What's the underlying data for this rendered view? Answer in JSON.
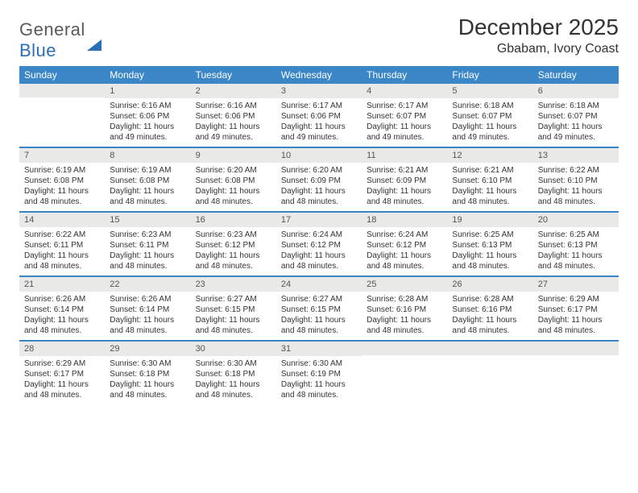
{
  "brand": {
    "part1": "General",
    "part2": "Blue"
  },
  "title": "December 2025",
  "location": "Gbabam, Ivory Coast",
  "colors": {
    "header_bg": "#3b86c6",
    "header_fg": "#ffffff",
    "daynum_bg": "#e9e9e8",
    "text": "#333333",
    "brand_gray": "#5a5a5a",
    "brand_blue": "#2a6fb5"
  },
  "day_labels": [
    "Sunday",
    "Monday",
    "Tuesday",
    "Wednesday",
    "Thursday",
    "Friday",
    "Saturday"
  ],
  "weeks": [
    [
      {
        "n": "",
        "sr": "",
        "ss": "",
        "dl": ""
      },
      {
        "n": "1",
        "sr": "Sunrise: 6:16 AM",
        "ss": "Sunset: 6:06 PM",
        "dl": "Daylight: 11 hours and 49 minutes."
      },
      {
        "n": "2",
        "sr": "Sunrise: 6:16 AM",
        "ss": "Sunset: 6:06 PM",
        "dl": "Daylight: 11 hours and 49 minutes."
      },
      {
        "n": "3",
        "sr": "Sunrise: 6:17 AM",
        "ss": "Sunset: 6:06 PM",
        "dl": "Daylight: 11 hours and 49 minutes."
      },
      {
        "n": "4",
        "sr": "Sunrise: 6:17 AM",
        "ss": "Sunset: 6:07 PM",
        "dl": "Daylight: 11 hours and 49 minutes."
      },
      {
        "n": "5",
        "sr": "Sunrise: 6:18 AM",
        "ss": "Sunset: 6:07 PM",
        "dl": "Daylight: 11 hours and 49 minutes."
      },
      {
        "n": "6",
        "sr": "Sunrise: 6:18 AM",
        "ss": "Sunset: 6:07 PM",
        "dl": "Daylight: 11 hours and 49 minutes."
      }
    ],
    [
      {
        "n": "7",
        "sr": "Sunrise: 6:19 AM",
        "ss": "Sunset: 6:08 PM",
        "dl": "Daylight: 11 hours and 48 minutes."
      },
      {
        "n": "8",
        "sr": "Sunrise: 6:19 AM",
        "ss": "Sunset: 6:08 PM",
        "dl": "Daylight: 11 hours and 48 minutes."
      },
      {
        "n": "9",
        "sr": "Sunrise: 6:20 AM",
        "ss": "Sunset: 6:08 PM",
        "dl": "Daylight: 11 hours and 48 minutes."
      },
      {
        "n": "10",
        "sr": "Sunrise: 6:20 AM",
        "ss": "Sunset: 6:09 PM",
        "dl": "Daylight: 11 hours and 48 minutes."
      },
      {
        "n": "11",
        "sr": "Sunrise: 6:21 AM",
        "ss": "Sunset: 6:09 PM",
        "dl": "Daylight: 11 hours and 48 minutes."
      },
      {
        "n": "12",
        "sr": "Sunrise: 6:21 AM",
        "ss": "Sunset: 6:10 PM",
        "dl": "Daylight: 11 hours and 48 minutes."
      },
      {
        "n": "13",
        "sr": "Sunrise: 6:22 AM",
        "ss": "Sunset: 6:10 PM",
        "dl": "Daylight: 11 hours and 48 minutes."
      }
    ],
    [
      {
        "n": "14",
        "sr": "Sunrise: 6:22 AM",
        "ss": "Sunset: 6:11 PM",
        "dl": "Daylight: 11 hours and 48 minutes."
      },
      {
        "n": "15",
        "sr": "Sunrise: 6:23 AM",
        "ss": "Sunset: 6:11 PM",
        "dl": "Daylight: 11 hours and 48 minutes."
      },
      {
        "n": "16",
        "sr": "Sunrise: 6:23 AM",
        "ss": "Sunset: 6:12 PM",
        "dl": "Daylight: 11 hours and 48 minutes."
      },
      {
        "n": "17",
        "sr": "Sunrise: 6:24 AM",
        "ss": "Sunset: 6:12 PM",
        "dl": "Daylight: 11 hours and 48 minutes."
      },
      {
        "n": "18",
        "sr": "Sunrise: 6:24 AM",
        "ss": "Sunset: 6:12 PM",
        "dl": "Daylight: 11 hours and 48 minutes."
      },
      {
        "n": "19",
        "sr": "Sunrise: 6:25 AM",
        "ss": "Sunset: 6:13 PM",
        "dl": "Daylight: 11 hours and 48 minutes."
      },
      {
        "n": "20",
        "sr": "Sunrise: 6:25 AM",
        "ss": "Sunset: 6:13 PM",
        "dl": "Daylight: 11 hours and 48 minutes."
      }
    ],
    [
      {
        "n": "21",
        "sr": "Sunrise: 6:26 AM",
        "ss": "Sunset: 6:14 PM",
        "dl": "Daylight: 11 hours and 48 minutes."
      },
      {
        "n": "22",
        "sr": "Sunrise: 6:26 AM",
        "ss": "Sunset: 6:14 PM",
        "dl": "Daylight: 11 hours and 48 minutes."
      },
      {
        "n": "23",
        "sr": "Sunrise: 6:27 AM",
        "ss": "Sunset: 6:15 PM",
        "dl": "Daylight: 11 hours and 48 minutes."
      },
      {
        "n": "24",
        "sr": "Sunrise: 6:27 AM",
        "ss": "Sunset: 6:15 PM",
        "dl": "Daylight: 11 hours and 48 minutes."
      },
      {
        "n": "25",
        "sr": "Sunrise: 6:28 AM",
        "ss": "Sunset: 6:16 PM",
        "dl": "Daylight: 11 hours and 48 minutes."
      },
      {
        "n": "26",
        "sr": "Sunrise: 6:28 AM",
        "ss": "Sunset: 6:16 PM",
        "dl": "Daylight: 11 hours and 48 minutes."
      },
      {
        "n": "27",
        "sr": "Sunrise: 6:29 AM",
        "ss": "Sunset: 6:17 PM",
        "dl": "Daylight: 11 hours and 48 minutes."
      }
    ],
    [
      {
        "n": "28",
        "sr": "Sunrise: 6:29 AM",
        "ss": "Sunset: 6:17 PM",
        "dl": "Daylight: 11 hours and 48 minutes."
      },
      {
        "n": "29",
        "sr": "Sunrise: 6:30 AM",
        "ss": "Sunset: 6:18 PM",
        "dl": "Daylight: 11 hours and 48 minutes."
      },
      {
        "n": "30",
        "sr": "Sunrise: 6:30 AM",
        "ss": "Sunset: 6:18 PM",
        "dl": "Daylight: 11 hours and 48 minutes."
      },
      {
        "n": "31",
        "sr": "Sunrise: 6:30 AM",
        "ss": "Sunset: 6:19 PM",
        "dl": "Daylight: 11 hours and 48 minutes."
      },
      {
        "n": "",
        "sr": "",
        "ss": "",
        "dl": ""
      },
      {
        "n": "",
        "sr": "",
        "ss": "",
        "dl": ""
      },
      {
        "n": "",
        "sr": "",
        "ss": "",
        "dl": ""
      }
    ]
  ]
}
